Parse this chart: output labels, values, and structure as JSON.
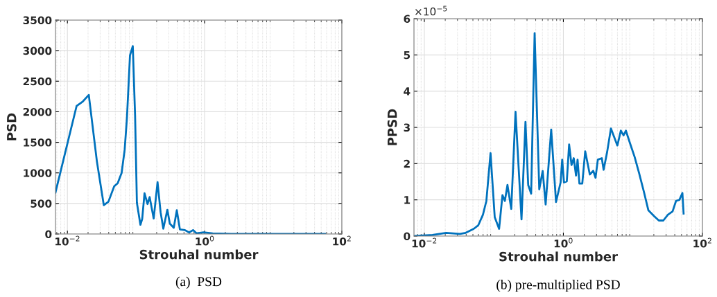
{
  "chart_data": [
    {
      "type": "line",
      "title": "(a)  PSD",
      "xlabel": "Strouhal number",
      "ylabel": "PSD",
      "log": "x",
      "grid": true,
      "xlim": [
        0.0067,
        100
      ],
      "xticks": [
        {
          "value": 0.01,
          "label": "10$^{−2}$"
        },
        {
          "value": 1,
          "label": "10$^{0}$"
        },
        {
          "value": 100,
          "label": "10$^{2}$"
        }
      ],
      "ylim": [
        0,
        3500
      ],
      "yticks": [
        0,
        500,
        1000,
        1500,
        2000,
        2500,
        3000,
        3500
      ],
      "series": [
        {
          "color": "#0072bd",
          "x": [
            0.0067,
            0.0136,
            0.0168,
            0.0205,
            0.0269,
            0.0339,
            0.0396,
            0.0481,
            0.054,
            0.0617,
            0.0683,
            0.0738,
            0.0817,
            0.0897,
            0.0969,
            0.103,
            0.116,
            0.123,
            0.133,
            0.147,
            0.158,
            0.181,
            0.206,
            0.228,
            0.25,
            0.286,
            0.311,
            0.355,
            0.393,
            0.436,
            0.516,
            0.594,
            0.678,
            0.762,
            0.96,
            1.31,
            2.45,
            57
          ],
          "values": [
            680,
            2093,
            2169,
            2275,
            1188,
            472,
            528,
            781,
            830,
            1000,
            1377,
            1905,
            2923,
            3074,
            1943,
            509,
            151,
            245,
            668,
            490,
            604,
            253,
            849,
            358,
            87,
            396,
            170,
            102,
            389,
            75,
            64,
            26,
            64,
            11,
            26,
            11,
            0,
            0
          ]
        }
      ]
    },
    {
      "type": "line",
      "title": "(b) pre-multiplied PSD",
      "xlabel": "Strouhal number",
      "ylabel": "PPSD",
      "log": "x",
      "grid": true,
      "annotations": [
        "×10$^{−5}$"
      ],
      "xlim": [
        0.0071,
        100
      ],
      "xticks": [
        {
          "value": 0.01,
          "label": "10$^{−2}$"
        },
        {
          "value": 1,
          "label": "10$^{0}$"
        },
        {
          "value": 100,
          "label": "10$^{2}$"
        }
      ],
      "ylim": [
        0,
        6
      ],
      "yticks": [
        0,
        1,
        2,
        3,
        4,
        5,
        6
      ],
      "series": [
        {
          "color": "#0072bd",
          "x": [
            0.0071,
            0.0131,
            0.0206,
            0.0325,
            0.0394,
            0.0514,
            0.0598,
            0.0697,
            0.0781,
            0.0896,
            0.103,
            0.119,
            0.133,
            0.144,
            0.157,
            0.178,
            0.205,
            0.25,
            0.285,
            0.312,
            0.344,
            0.386,
            0.45,
            0.504,
            0.556,
            0.668,
            0.784,
            0.912,
            0.962,
            1.02,
            1.12,
            1.21,
            1.31,
            1.41,
            1.52,
            1.6,
            1.7,
            1.87,
            2.06,
            2.4,
            2.69,
            2.9,
            3.13,
            3.57,
            3.79,
            4.25,
            4.83,
            5.33,
            5.98,
            6.7,
            7.35,
            7.93,
            9.09,
            10.6,
            12.3,
            14.4,
            16.7,
            20.2,
            23.6,
            27.4,
            31.9,
            37.2,
            41.7,
            46.7,
            51.5,
            53.6
          ],
          "values": [
            0.0,
            0.03,
            0.09,
            0.06,
            0.09,
            0.2,
            0.3,
            0.59,
            0.97,
            2.29,
            0.52,
            0.2,
            1.13,
            0.97,
            1.41,
            0.75,
            3.43,
            0.46,
            3.15,
            1.41,
            1.17,
            5.6,
            1.29,
            1.8,
            0.87,
            2.94,
            0.94,
            1.48,
            2.11,
            1.48,
            1.51,
            2.53,
            1.96,
            2.15,
            1.67,
            2.11,
            1.45,
            1.45,
            2.34,
            1.7,
            1.8,
            1.61,
            2.11,
            2.15,
            1.83,
            2.31,
            2.97,
            2.75,
            2.5,
            2.91,
            2.78,
            2.91,
            2.56,
            2.18,
            1.73,
            1.22,
            0.71,
            0.55,
            0.43,
            0.43,
            0.59,
            0.68,
            0.97,
            1.0,
            1.19,
            0.62
          ]
        }
      ]
    }
  ]
}
